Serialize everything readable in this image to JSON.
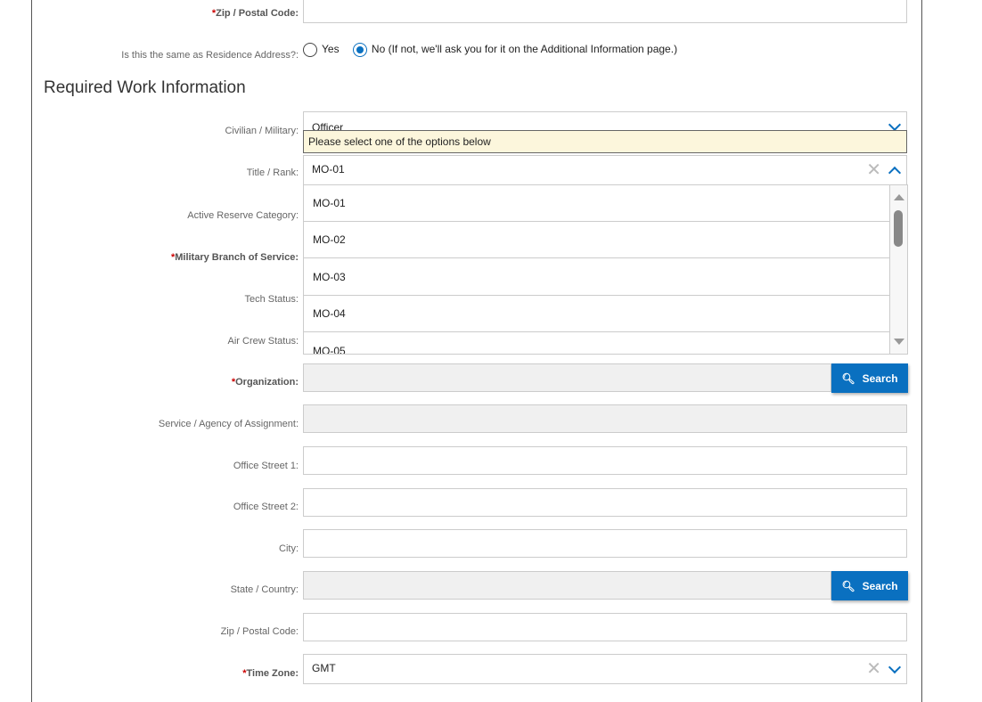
{
  "residence_zip": {
    "label": "Zip / Postal Code:",
    "value": ""
  },
  "same_address": {
    "label": "Is this the same as Residence Address?:",
    "options": [
      "Yes",
      "No (If not, we'll ask you for it on the Additional Information page.)"
    ],
    "selected": "No"
  },
  "section_title": "Required Work Information",
  "fields": {
    "civilian_military": {
      "label": "Civilian / Military:",
      "value": "Officer",
      "tooltip": "Please select one of the options below"
    },
    "title_rank": {
      "label": "Title / Rank:",
      "value": "MO-01",
      "options": [
        "MO-01",
        "MO-02",
        "MO-03",
        "MO-04",
        "MO-05"
      ]
    },
    "active_reserve": {
      "label": "Active Reserve Category:"
    },
    "military_branch": {
      "label": "Military Branch of Service:"
    },
    "tech_status": {
      "label": "Tech Status:"
    },
    "air_crew": {
      "label": "Air Crew Status:"
    },
    "organization": {
      "label": "Organization:",
      "value": "",
      "button": "Search"
    },
    "service_agency": {
      "label": "Service / Agency of Assignment:",
      "value": ""
    },
    "office_street1": {
      "label": "Office Street 1:",
      "value": ""
    },
    "office_street2": {
      "label": "Office Street 2:",
      "value": ""
    },
    "city": {
      "label": "City:",
      "value": ""
    },
    "state_country": {
      "label": "State / Country:",
      "value": "",
      "button": "Search"
    },
    "zip": {
      "label": "Zip / Postal Code:",
      "value": ""
    },
    "time_zone": {
      "label": "Time Zone:",
      "value": "GMT"
    }
  },
  "colors": {
    "accent": "#0a70c0",
    "required": "#cc0000",
    "tooltip_bg": "#fcf6dc"
  }
}
